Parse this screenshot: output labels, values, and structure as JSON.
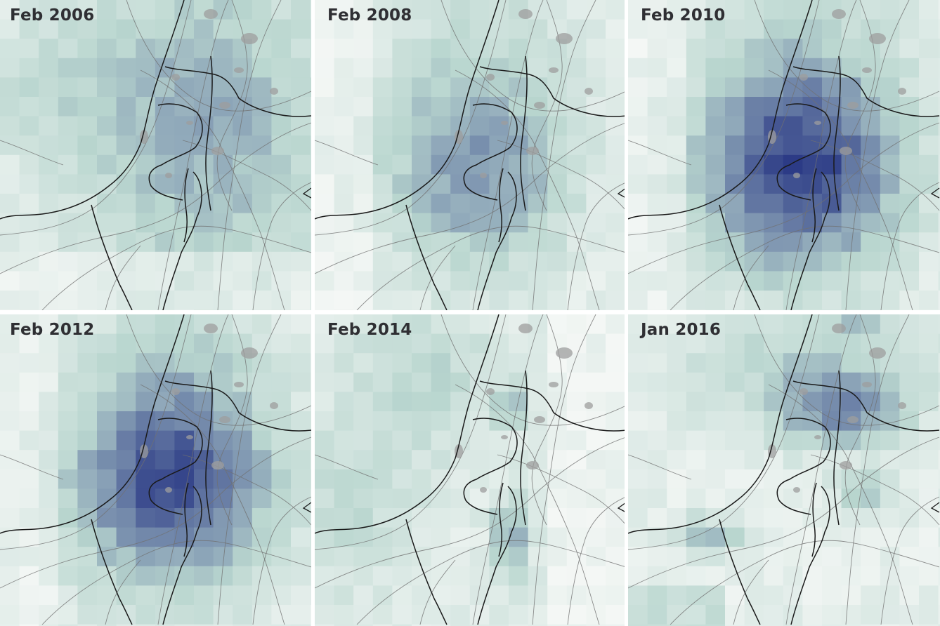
{
  "panels": [
    {
      "title": "Feb 2006",
      "level": 0.55,
      "pattern": "broad"
    },
    {
      "title": "Feb 2008",
      "level": 0.6,
      "pattern": "center"
    },
    {
      "title": "Feb 2010",
      "level": 0.95,
      "pattern": "center"
    },
    {
      "title": "Feb 2012",
      "level": 0.9,
      "pattern": "center"
    },
    {
      "title": "Feb 2014",
      "level": 0.25,
      "pattern": "sparse"
    },
    {
      "title": "Jan 2016",
      "level": 0.3,
      "pattern": "north"
    }
  ],
  "colors": {
    "low": "#f4f7f5",
    "mid": "#b9d6cf",
    "high": "#2c3b86",
    "border_line": "#1a1a1a",
    "road_line": "#707070",
    "urban_area": "#9d9d9d",
    "title_text": "#2f2f33",
    "gutter": "#ffffff"
  }
}
